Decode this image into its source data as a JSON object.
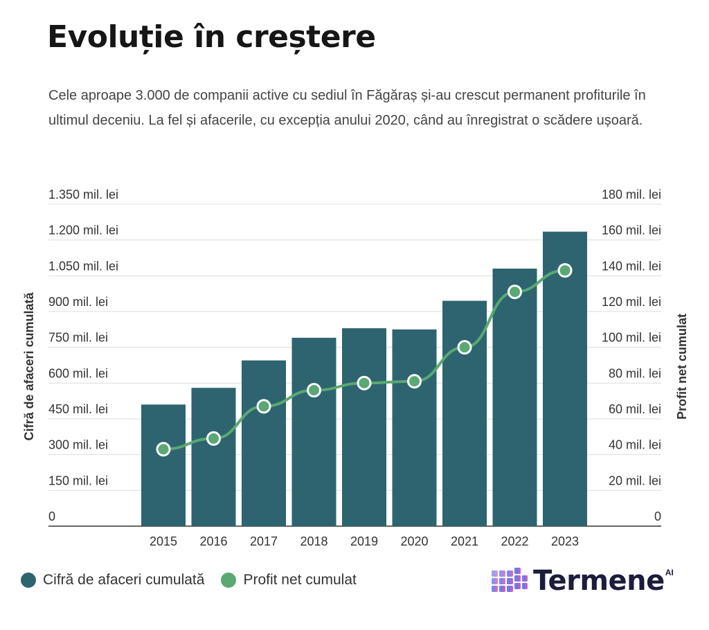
{
  "header": {
    "title": "Evoluție în creștere",
    "subtitle": "Cele aproape 3.000 de companii active cu sediul în Făgăraș și-au crescut permanent profiturile în ultimul deceniu. La fel și afacerile, cu excepția anului 2020, când au înregistrat o scădere ușoară."
  },
  "chart_data": {
    "type": "bar+line",
    "categories": [
      "2015",
      "2016",
      "2017",
      "2018",
      "2019",
      "2020",
      "2021",
      "2022",
      "2023"
    ],
    "series": [
      {
        "name": "Cifră de afaceri cumulată",
        "type": "bar",
        "axis": "left",
        "color": "#2d6470",
        "values": [
          510,
          580,
          695,
          790,
          830,
          825,
          945,
          1080,
          1235
        ]
      },
      {
        "name": "Profit net cumulat",
        "type": "line",
        "axis": "right",
        "color": "#5aa873",
        "values": [
          43,
          49,
          67,
          76,
          80,
          81,
          100,
          131,
          143
        ]
      }
    ],
    "y_left": {
      "label": "Cifră de afaceri cumulată",
      "range": [
        0,
        1350
      ],
      "ticks": [
        0,
        150,
        300,
        450,
        600,
        750,
        900,
        1050,
        1200,
        1350
      ],
      "tick_labels": [
        "0",
        "150 mil. lei",
        "300 mil. lei",
        "450 mil. lei",
        "600 mil. lei",
        "750 mil. lei",
        "900 mil. lei",
        "1.050 mil. lei",
        "1.200 mil. lei",
        "1.350 mil. lei"
      ]
    },
    "y_right": {
      "label": "Profit net cumulat",
      "range": [
        0,
        180
      ],
      "ticks": [
        0,
        20,
        40,
        60,
        80,
        100,
        120,
        140,
        160,
        180
      ],
      "tick_labels": [
        "0",
        "20 mil. lei",
        "40 mil. lei",
        "60 mil. lei",
        "80 mil. lei",
        "100 mil. lei",
        "120 mil. lei",
        "140 mil. lei",
        "160 mil. lei",
        "180 mil. lei"
      ]
    },
    "grid": true,
    "legend_position": "bottom-left"
  },
  "legend": {
    "items": [
      {
        "label": "Cifră de afaceri cumulată",
        "color": "#2d6470"
      },
      {
        "label": "Profit net cumulat",
        "color": "#5aa873"
      }
    ]
  },
  "brand": {
    "name": "Termene",
    "suffix": "AI",
    "icon": "cube-grid-logo-icon"
  }
}
